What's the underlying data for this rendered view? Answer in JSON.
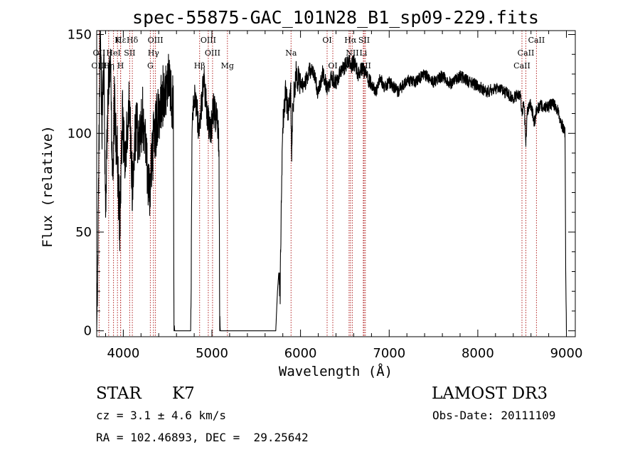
{
  "chart_data": {
    "type": "line",
    "title": "spec-55875-GAC_101N28_B1_sp09-229.fits",
    "xlabel": "Wavelength (Å)",
    "ylabel": "Flux (relative)",
    "xlim": [
      3700,
      9100
    ],
    "ylim": [
      -3,
      152
    ],
    "xticks": [
      4000,
      5000,
      6000,
      7000,
      8000,
      9000
    ],
    "yticks": [
      0,
      50,
      100,
      150
    ],
    "spectrum_knots": [
      [
        3700,
        0
      ],
      [
        3712,
        35
      ],
      [
        3725,
        90
      ],
      [
        3740,
        150
      ],
      [
        3760,
        105
      ],
      [
        3780,
        140
      ],
      [
        3800,
        60
      ],
      [
        3830,
        120
      ],
      [
        3860,
        130
      ],
      [
        3880,
        75
      ],
      [
        3900,
        115
      ],
      [
        3930,
        90
      ],
      [
        3960,
        55
      ],
      [
        3990,
        110
      ],
      [
        4020,
        80
      ],
      [
        4060,
        120
      ],
      [
        4100,
        75
      ],
      [
        4140,
        105
      ],
      [
        4180,
        95
      ],
      [
        4220,
        110
      ],
      [
        4260,
        85
      ],
      [
        4300,
        70
      ],
      [
        4340,
        95
      ],
      [
        4380,
        105
      ],
      [
        4420,
        115
      ],
      [
        4460,
        120
      ],
      [
        4500,
        128
      ],
      [
        4540,
        122
      ],
      [
        4565,
        110
      ],
      [
        4572,
        5
      ],
      [
        4580,
        0
      ],
      [
        4760,
        0
      ],
      [
        4768,
        40
      ],
      [
        4776,
        105
      ],
      [
        4800,
        118
      ],
      [
        4830,
        110
      ],
      [
        4860,
        102
      ],
      [
        4880,
        115
      ],
      [
        4910,
        125
      ],
      [
        4950,
        110
      ],
      [
        4980,
        100
      ],
      [
        5020,
        112
      ],
      [
        5050,
        108
      ],
      [
        5070,
        100
      ],
      [
        5080,
        92
      ],
      [
        5088,
        5
      ],
      [
        5095,
        0
      ],
      [
        5720,
        0
      ],
      [
        5740,
        20
      ],
      [
        5755,
        30
      ],
      [
        5770,
        20
      ],
      [
        5785,
        75
      ],
      [
        5800,
        105
      ],
      [
        5830,
        120
      ],
      [
        5860,
        112
      ],
      [
        5890,
        120
      ],
      [
        5900,
        80
      ],
      [
        5910,
        112
      ],
      [
        5950,
        130
      ],
      [
        6000,
        124
      ],
      [
        6050,
        125
      ],
      [
        6100,
        132
      ],
      [
        6150,
        130
      ],
      [
        6200,
        120
      ],
      [
        6250,
        131
      ],
      [
        6300,
        123
      ],
      [
        6350,
        128
      ],
      [
        6400,
        126
      ],
      [
        6450,
        131
      ],
      [
        6500,
        134
      ],
      [
        6550,
        138
      ],
      [
        6565,
        133
      ],
      [
        6600,
        136
      ],
      [
        6650,
        130
      ],
      [
        6700,
        133
      ],
      [
        6750,
        128
      ],
      [
        6800,
        125
      ],
      [
        6850,
        121
      ],
      [
        6900,
        128
      ],
      [
        6950,
        123
      ],
      [
        7000,
        126
      ],
      [
        7100,
        121
      ],
      [
        7200,
        127
      ],
      [
        7300,
        126
      ],
      [
        7400,
        130
      ],
      [
        7500,
        126
      ],
      [
        7600,
        129
      ],
      [
        7700,
        125
      ],
      [
        7800,
        129
      ],
      [
        7900,
        126
      ],
      [
        8000,
        124
      ],
      [
        8100,
        121
      ],
      [
        8200,
        123
      ],
      [
        8300,
        121
      ],
      [
        8400,
        118
      ],
      [
        8480,
        120
      ],
      [
        8500,
        110
      ],
      [
        8520,
        116
      ],
      [
        8542,
        96
      ],
      [
        8560,
        112
      ],
      [
        8600,
        115
      ],
      [
        8640,
        105
      ],
      [
        8662,
        112
      ],
      [
        8700,
        114
      ],
      [
        8780,
        113
      ],
      [
        8850,
        115
      ],
      [
        8900,
        112
      ],
      [
        8950,
        104
      ],
      [
        8985,
        100
      ],
      [
        8992,
        30
      ],
      [
        9000,
        0
      ]
    ],
    "spectral_lines": [
      {
        "name": "Hε",
        "wavelength": 3970,
        "row": 1
      },
      {
        "name": "K",
        "wavelength": 3934,
        "row": 1
      },
      {
        "name": "Hδ",
        "wavelength": 4102,
        "row": 1
      },
      {
        "name": "OIII",
        "wavelength": 4363,
        "row": 1
      },
      {
        "name": "OIII",
        "wavelength": 4959,
        "row": 1
      },
      {
        "name": "OI",
        "wavelength": 6300,
        "row": 1
      },
      {
        "name": "Hα",
        "wavelength": 6563,
        "row": 1
      },
      {
        "name": "SII",
        "wavelength": 6717,
        "row": 1
      },
      {
        "name": "CaII",
        "wavelength": 8662,
        "row": 1
      },
      {
        "name": "OII",
        "wavelength": 3727,
        "row": 2
      },
      {
        "name": "HeI",
        "wavelength": 3889,
        "row": 2
      },
      {
        "name": "SII",
        "wavelength": 4072,
        "row": 2
      },
      {
        "name": "Hγ",
        "wavelength": 4340,
        "row": 2
      },
      {
        "name": "OIII",
        "wavelength": 5007,
        "row": 2
      },
      {
        "name": "Na",
        "wavelength": 5893,
        "row": 2
      },
      {
        "name": "NII",
        "wavelength": 6584,
        "row": 2
      },
      {
        "name": "Li",
        "wavelength": 6708,
        "row": 2
      },
      {
        "name": "CaII",
        "wavelength": 8542,
        "row": 2
      },
      {
        "name": "OIII",
        "wavelength": 3727,
        "row": 3
      },
      {
        "name": "Hη",
        "wavelength": 3835,
        "row": 3
      },
      {
        "name": "H",
        "wavelength": 3969,
        "row": 3
      },
      {
        "name": "G",
        "wavelength": 4305,
        "row": 3
      },
      {
        "name": "Hβ",
        "wavelength": 4861,
        "row": 3
      },
      {
        "name": "Mg",
        "wavelength": 5175,
        "row": 3
      },
      {
        "name": "OI",
        "wavelength": 6364,
        "row": 3
      },
      {
        "name": "NII",
        "wavelength": 6548,
        "row": 3
      },
      {
        "name": "SII",
        "wavelength": 6731,
        "row": 3
      },
      {
        "name": "CaII",
        "wavelength": 8498,
        "row": 3
      }
    ],
    "line_color": "#000000",
    "marker_color": "#b22222"
  },
  "info": {
    "object_class": "STAR",
    "subclass": "K7",
    "redshift_text": "cz = 3.1 ± 4.6 km/s",
    "coords_text": "RA = 102.46893, DEC =  29.25642",
    "survey": "LAMOST DR3",
    "obs_date": "Obs-Date: 20111109"
  }
}
